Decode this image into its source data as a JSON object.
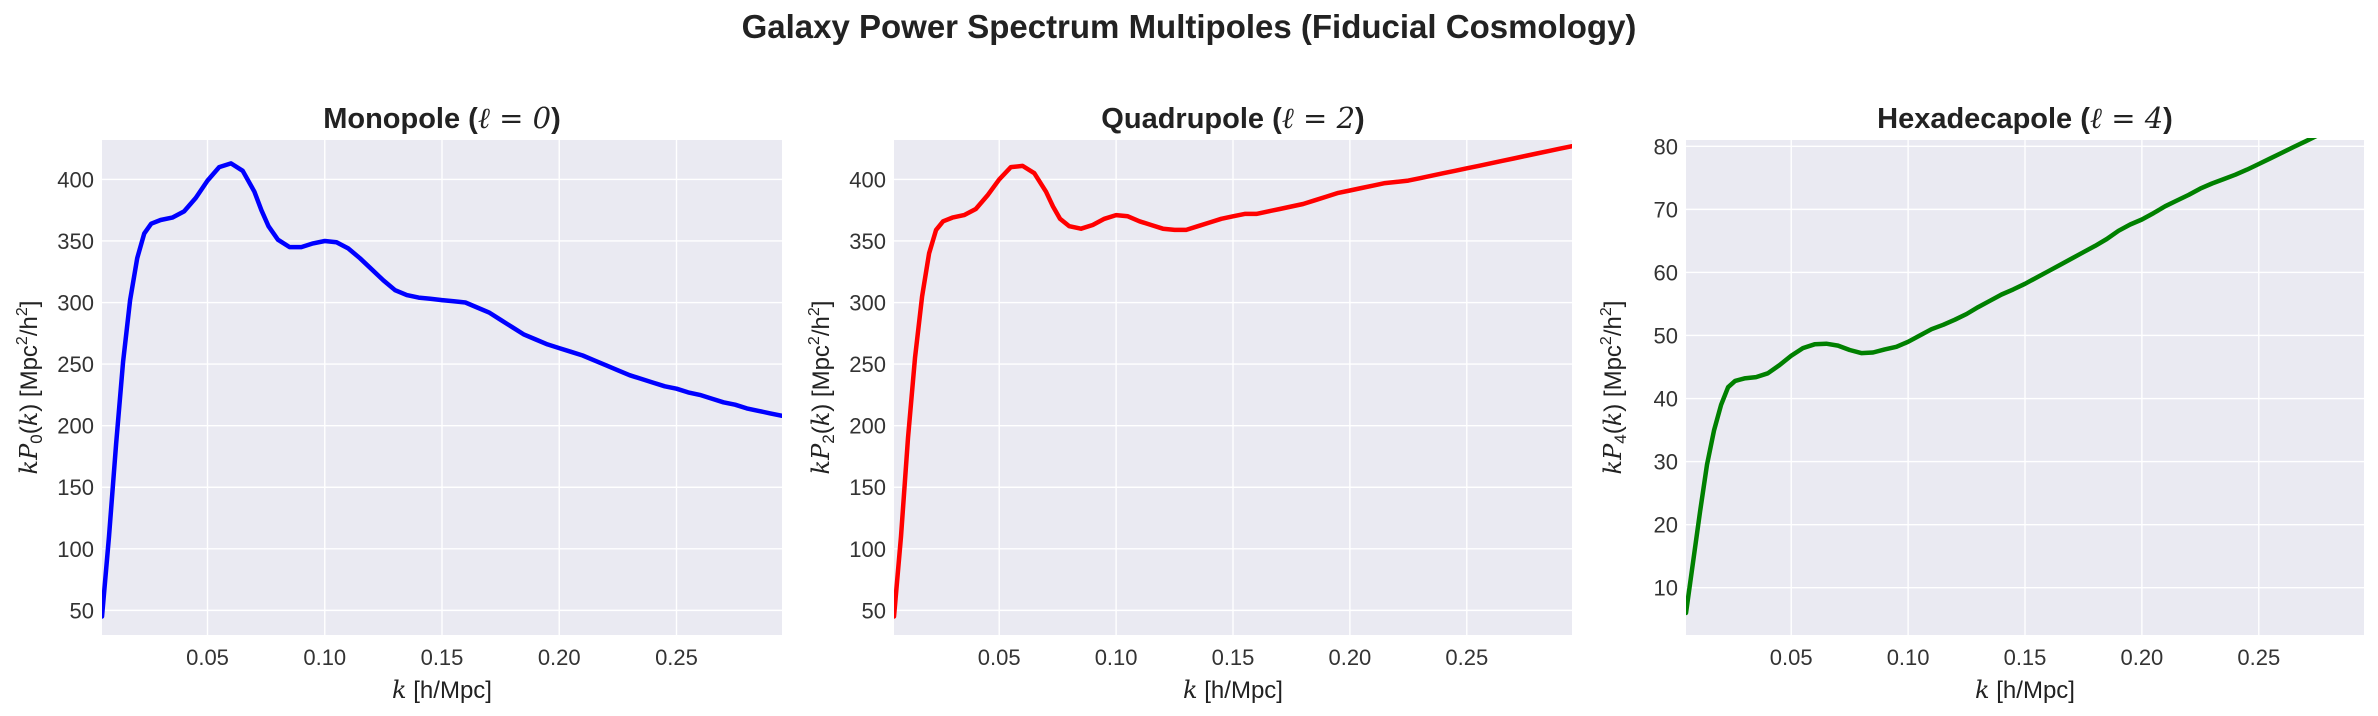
{
  "title": "Galaxy Power Spectrum Multipoles (Fiducial Cosmology)",
  "chart_data": [
    {
      "type": "line",
      "title": "Monopole (ℓ = 0)",
      "title_prefix": "Monopole (",
      "title_math": "ℓ = 0",
      "title_suffix": ")",
      "xlabel": "k [h/Mpc]",
      "ylabel": "kP0(k) [Mpc²/h²]",
      "ylabel_sub": "0",
      "xlim": [
        0.005,
        0.295
      ],
      "ylim": [
        30,
        432
      ],
      "xticks": [
        0.05,
        0.1,
        0.15,
        0.2,
        0.25
      ],
      "xtick_labels": [
        "0.05",
        "0.10",
        "0.15",
        "0.20",
        "0.25"
      ],
      "yticks": [
        50,
        100,
        150,
        200,
        250,
        300,
        350,
        400
      ],
      "ytick_labels": [
        "50",
        "100",
        "150",
        "200",
        "250",
        "300",
        "350",
        "400"
      ],
      "grid": true,
      "series": [
        {
          "color": "#0000ff",
          "x": [
            0.005,
            0.008,
            0.011,
            0.014,
            0.017,
            0.02,
            0.023,
            0.026,
            0.03,
            0.035,
            0.04,
            0.045,
            0.05,
            0.055,
            0.06,
            0.065,
            0.07,
            0.073,
            0.076,
            0.08,
            0.085,
            0.09,
            0.095,
            0.1,
            0.105,
            0.11,
            0.115,
            0.12,
            0.125,
            0.13,
            0.135,
            0.14,
            0.145,
            0.15,
            0.155,
            0.16,
            0.165,
            0.17,
            0.175,
            0.18,
            0.185,
            0.19,
            0.195,
            0.2,
            0.205,
            0.21,
            0.215,
            0.22,
            0.225,
            0.23,
            0.235,
            0.24,
            0.245,
            0.25,
            0.255,
            0.26,
            0.265,
            0.27,
            0.275,
            0.28,
            0.285,
            0.29,
            0.295
          ],
          "y": [
            45,
            110,
            185,
            252,
            302,
            336,
            356,
            364,
            367,
            369,
            374,
            385,
            399,
            410,
            413,
            407,
            390,
            375,
            362,
            351,
            345,
            345,
            348,
            350,
            349,
            344,
            336,
            327,
            318,
            310,
            306,
            304,
            303,
            302,
            301,
            300,
            296,
            292,
            286,
            280,
            274,
            270,
            266,
            263,
            260,
            257,
            253,
            249,
            245,
            241,
            238,
            235,
            232,
            230,
            227,
            225,
            222,
            219,
            217,
            214,
            212,
            210,
            208
          ]
        }
      ]
    },
    {
      "type": "line",
      "title": "Quadrupole (ℓ = 2)",
      "title_prefix": "Quadrupole (",
      "title_math": "ℓ = 2",
      "title_suffix": ")",
      "xlabel": "k [h/Mpc]",
      "ylabel": "kP2(k) [Mpc²/h²]",
      "ylabel_sub": "2",
      "xlim": [
        0.005,
        0.295
      ],
      "ylim": [
        30,
        432
      ],
      "xticks": [
        0.05,
        0.1,
        0.15,
        0.2,
        0.25
      ],
      "xtick_labels": [
        "0.05",
        "0.10",
        "0.15",
        "0.20",
        "0.25"
      ],
      "yticks": [
        50,
        100,
        150,
        200,
        250,
        300,
        350,
        400
      ],
      "ytick_labels": [
        "50",
        "100",
        "150",
        "200",
        "250",
        "300",
        "350",
        "400"
      ],
      "grid": true,
      "series": [
        {
          "color": "#ff0000",
          "x": [
            0.005,
            0.008,
            0.011,
            0.014,
            0.017,
            0.02,
            0.023,
            0.026,
            0.03,
            0.035,
            0.04,
            0.045,
            0.05,
            0.055,
            0.06,
            0.065,
            0.07,
            0.073,
            0.076,
            0.08,
            0.085,
            0.09,
            0.095,
            0.1,
            0.105,
            0.11,
            0.115,
            0.12,
            0.125,
            0.13,
            0.135,
            0.14,
            0.145,
            0.15,
            0.155,
            0.16,
            0.165,
            0.17,
            0.175,
            0.18,
            0.185,
            0.19,
            0.195,
            0.2,
            0.205,
            0.21,
            0.215,
            0.22,
            0.225,
            0.23,
            0.235,
            0.24,
            0.245,
            0.25,
            0.255,
            0.26,
            0.265,
            0.27,
            0.275,
            0.28,
            0.285,
            0.29,
            0.295
          ],
          "y": [
            45,
            110,
            190,
            255,
            305,
            340,
            359,
            366,
            369,
            371,
            376,
            387,
            400,
            410,
            411,
            405,
            390,
            378,
            368,
            362,
            360,
            363,
            368,
            371,
            370,
            366,
            363,
            360,
            359,
            359,
            362,
            365,
            368,
            370,
            372,
            372,
            374,
            376,
            378,
            380,
            383,
            386,
            389,
            391,
            393,
            395,
            397,
            398,
            399,
            401,
            403,
            405,
            407,
            409,
            411,
            413,
            415,
            417,
            419,
            421,
            423,
            425,
            427
          ]
        }
      ]
    },
    {
      "type": "line",
      "title": "Hexadecapole (ℓ = 4)",
      "title_prefix": "Hexadecapole (",
      "title_math": "ℓ = 4",
      "title_suffix": ")",
      "xlabel": "k [h/Mpc]",
      "ylabel": "kP4(k) [Mpc²/h²]",
      "ylabel_sub": "4",
      "xlim": [
        0.005,
        0.295
      ],
      "ylim": [
        2.5,
        81
      ],
      "xticks": [
        0.05,
        0.1,
        0.15,
        0.2,
        0.25
      ],
      "xtick_labels": [
        "0.05",
        "0.10",
        "0.15",
        "0.20",
        "0.25"
      ],
      "yticks": [
        10,
        20,
        30,
        40,
        50,
        60,
        70,
        80
      ],
      "ytick_labels": [
        "10",
        "20",
        "30",
        "40",
        "50",
        "60",
        "70",
        "80"
      ],
      "grid": true,
      "series": [
        {
          "color": "#008000",
          "x": [
            0.005,
            0.008,
            0.011,
            0.014,
            0.017,
            0.02,
            0.023,
            0.026,
            0.03,
            0.035,
            0.04,
            0.045,
            0.05,
            0.055,
            0.06,
            0.065,
            0.07,
            0.075,
            0.08,
            0.085,
            0.09,
            0.095,
            0.1,
            0.105,
            0.11,
            0.115,
            0.12,
            0.125,
            0.13,
            0.135,
            0.14,
            0.145,
            0.15,
            0.155,
            0.16,
            0.165,
            0.17,
            0.175,
            0.18,
            0.185,
            0.19,
            0.195,
            0.2,
            0.205,
            0.21,
            0.215,
            0.22,
            0.225,
            0.23,
            0.235,
            0.24,
            0.245,
            0.25,
            0.255,
            0.26,
            0.265,
            0.27,
            0.275,
            0.28,
            0.285,
            0.29,
            0.295
          ],
          "y": [
            6,
            14,
            22,
            29.5,
            35,
            39,
            41.8,
            42.8,
            43.2,
            43.4,
            44.0,
            45.3,
            46.8,
            48.0,
            48.6,
            48.7,
            48.4,
            47.7,
            47.2,
            47.3,
            47.8,
            48.2,
            49.0,
            50.0,
            51.0,
            51.7,
            52.5,
            53.4,
            54.5,
            55.5,
            56.5,
            57.3,
            58.2,
            59.2,
            60.2,
            61.2,
            62.2,
            63.2,
            64.2,
            65.3,
            66.6,
            67.6,
            68.4,
            69.4,
            70.5,
            71.4,
            72.3,
            73.3,
            74.1,
            74.8,
            75.5,
            76.3,
            77.2,
            78.1,
            79.0,
            79.9,
            80.8,
            81.7,
            82.6,
            83.5,
            84.4,
            85.3
          ]
        }
      ]
    }
  ]
}
